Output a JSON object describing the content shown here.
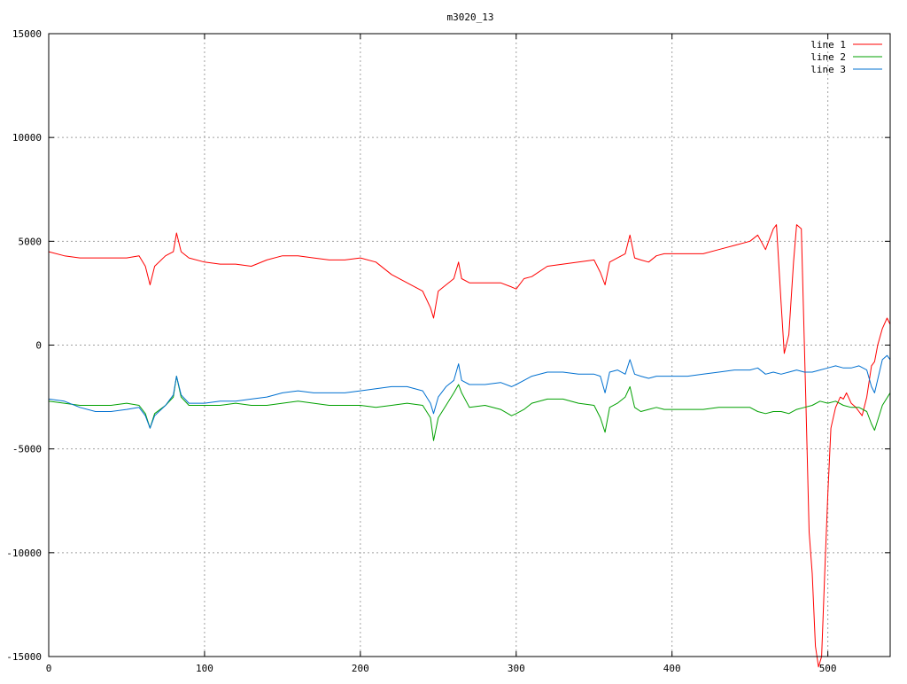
{
  "chart_data": {
    "type": "line",
    "title": "m3020_13",
    "xlabel": "",
    "ylabel": "",
    "xlim": [
      0,
      540
    ],
    "ylim": [
      -15000,
      15000
    ],
    "xticks": [
      0,
      100,
      200,
      300,
      400,
      500
    ],
    "yticks": [
      -15000,
      -10000,
      -5000,
      0,
      5000,
      10000,
      15000
    ],
    "xtick_labels": [
      "0",
      "100",
      "200",
      "300",
      "400",
      "500"
    ],
    "ytick_labels": [
      "-15000",
      "-10000",
      "-5000",
      "0",
      "5000",
      "10000",
      "15000"
    ],
    "grid": true,
    "legend_position": "top-right",
    "series": [
      {
        "name": "line 1",
        "color": "#ff0000",
        "x": [
          0,
          10,
          20,
          30,
          40,
          50,
          58,
          62,
          65,
          68,
          75,
          80,
          82,
          85,
          90,
          100,
          110,
          120,
          130,
          140,
          150,
          160,
          170,
          180,
          190,
          200,
          210,
          220,
          230,
          240,
          245,
          247,
          250,
          255,
          260,
          263,
          265,
          270,
          280,
          290,
          297,
          300,
          305,
          310,
          320,
          330,
          340,
          350,
          354,
          357,
          360,
          365,
          370,
          373,
          376,
          380,
          385,
          390,
          395,
          400,
          410,
          420,
          430,
          440,
          450,
          455,
          460,
          465,
          467,
          470,
          472,
          475,
          478,
          480,
          483,
          486,
          488,
          490,
          492,
          494,
          496,
          498,
          500,
          502,
          505,
          508,
          510,
          512,
          515,
          518,
          520,
          522,
          525,
          528,
          530,
          532,
          535,
          538,
          540
        ],
        "y": [
          4500,
          4300,
          4200,
          4200,
          4200,
          4200,
          4300,
          3800,
          2900,
          3800,
          4300,
          4500,
          5400,
          4500,
          4200,
          4000,
          3900,
          3900,
          3800,
          4100,
          4300,
          4300,
          4200,
          4100,
          4100,
          4200,
          4000,
          3400,
          3000,
          2600,
          1800,
          1300,
          2600,
          2900,
          3200,
          4000,
          3200,
          3000,
          3000,
          3000,
          2800,
          2700,
          3200,
          3300,
          3800,
          3900,
          4000,
          4100,
          3500,
          2900,
          4000,
          4200,
          4400,
          5300,
          4200,
          4100,
          4000,
          4300,
          4400,
          4400,
          4400,
          4400,
          4600,
          4800,
          5000,
          5300,
          4600,
          5600,
          5800,
          2000,
          -400,
          500,
          4000,
          5800,
          5600,
          -3000,
          -9000,
          -11000,
          -14500,
          -15500,
          -15000,
          -11000,
          -7200,
          -4000,
          -3000,
          -2500,
          -2600,
          -2300,
          -2800,
          -3000,
          -3200,
          -3400,
          -2500,
          -1000,
          -800,
          0,
          800,
          1300,
          1000
        ]
      },
      {
        "name": "line 2",
        "color": "#00a000",
        "x": [
          0,
          10,
          20,
          30,
          40,
          50,
          58,
          62,
          65,
          68,
          75,
          80,
          82,
          85,
          90,
          100,
          110,
          120,
          130,
          140,
          150,
          160,
          170,
          180,
          190,
          200,
          210,
          220,
          230,
          240,
          245,
          247,
          250,
          255,
          260,
          263,
          265,
          270,
          280,
          290,
          297,
          300,
          305,
          310,
          320,
          330,
          340,
          350,
          354,
          357,
          360,
          365,
          370,
          373,
          376,
          380,
          385,
          390,
          395,
          400,
          410,
          420,
          430,
          440,
          450,
          455,
          460,
          465,
          470,
          475,
          480,
          485,
          490,
          495,
          500,
          505,
          510,
          515,
          520,
          525,
          528,
          530,
          535,
          540
        ],
        "y": [
          -2700,
          -2800,
          -2900,
          -2900,
          -2900,
          -2800,
          -2900,
          -3300,
          -4000,
          -3300,
          -2900,
          -2500,
          -1500,
          -2500,
          -2900,
          -2900,
          -2900,
          -2800,
          -2900,
          -2900,
          -2800,
          -2700,
          -2800,
          -2900,
          -2900,
          -2900,
          -3000,
          -2900,
          -2800,
          -2900,
          -3500,
          -4600,
          -3500,
          -2900,
          -2300,
          -1900,
          -2300,
          -3000,
          -2900,
          -3100,
          -3400,
          -3300,
          -3100,
          -2800,
          -2600,
          -2600,
          -2800,
          -2900,
          -3500,
          -4200,
          -3000,
          -2800,
          -2500,
          -2000,
          -3000,
          -3200,
          -3100,
          -3000,
          -3100,
          -3100,
          -3100,
          -3100,
          -3000,
          -3000,
          -3000,
          -3200,
          -3300,
          -3200,
          -3200,
          -3300,
          -3100,
          -3000,
          -2900,
          -2700,
          -2800,
          -2700,
          -2900,
          -3000,
          -3000,
          -3200,
          -3800,
          -4100,
          -2900,
          -2300
        ]
      },
      {
        "name": "line 3",
        "color": "#0070d0",
        "x": [
          0,
          10,
          20,
          30,
          40,
          50,
          58,
          62,
          65,
          68,
          75,
          80,
          82,
          85,
          90,
          100,
          110,
          120,
          130,
          140,
          150,
          160,
          170,
          180,
          190,
          200,
          210,
          220,
          230,
          240,
          245,
          247,
          250,
          255,
          260,
          263,
          265,
          270,
          280,
          290,
          297,
          300,
          305,
          310,
          320,
          330,
          340,
          350,
          354,
          357,
          360,
          365,
          370,
          373,
          376,
          380,
          385,
          390,
          395,
          400,
          410,
          420,
          430,
          440,
          450,
          455,
          460,
          465,
          470,
          475,
          480,
          485,
          490,
          495,
          500,
          505,
          510,
          515,
          520,
          525,
          528,
          530,
          535,
          538,
          540
        ],
        "y": [
          -2600,
          -2700,
          -3000,
          -3200,
          -3200,
          -3100,
          -3000,
          -3400,
          -4000,
          -3400,
          -2900,
          -2400,
          -1500,
          -2400,
          -2800,
          -2800,
          -2700,
          -2700,
          -2600,
          -2500,
          -2300,
          -2200,
          -2300,
          -2300,
          -2300,
          -2200,
          -2100,
          -2000,
          -2000,
          -2200,
          -2800,
          -3300,
          -2500,
          -2000,
          -1700,
          -900,
          -1700,
          -1900,
          -1900,
          -1800,
          -2000,
          -1900,
          -1700,
          -1500,
          -1300,
          -1300,
          -1400,
          -1400,
          -1500,
          -2300,
          -1300,
          -1200,
          -1400,
          -700,
          -1400,
          -1500,
          -1600,
          -1500,
          -1500,
          -1500,
          -1500,
          -1400,
          -1300,
          -1200,
          -1200,
          -1100,
          -1400,
          -1300,
          -1400,
          -1300,
          -1200,
          -1300,
          -1300,
          -1200,
          -1100,
          -1000,
          -1100,
          -1100,
          -1000,
          -1200,
          -2000,
          -2300,
          -700,
          -500,
          -700
        ]
      }
    ]
  }
}
